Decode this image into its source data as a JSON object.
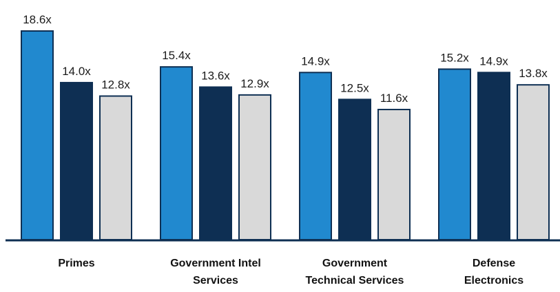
{
  "chart_data": {
    "type": "bar",
    "title": "",
    "xlabel": "",
    "ylabel": "",
    "categories": [
      [
        "Primes"
      ],
      [
        "Government Intel",
        "Services"
      ],
      [
        "Government",
        "Technical Services"
      ],
      [
        "Defense",
        "Electronics"
      ]
    ],
    "series": [
      {
        "values": [
          18.6,
          15.4,
          14.9,
          15.2
        ],
        "labels": [
          "18.6x",
          "15.4x",
          "14.9x",
          "15.2x"
        ],
        "color": "#2189cf"
      },
      {
        "values": [
          14.0,
          13.6,
          12.5,
          14.9
        ],
        "labels": [
          "14.0x",
          "13.6x",
          "12.5x",
          "14.9x"
        ],
        "color": "#0e2f53"
      },
      {
        "values": [
          12.8,
          12.9,
          11.6,
          13.8
        ],
        "labels": [
          "12.8x",
          "12.9x",
          "11.6x",
          "13.8x"
        ],
        "color": "#d9d9d9"
      }
    ],
    "ylim": [
      0,
      19.5
    ],
    "grid": false,
    "legend": "none",
    "value_label_suffix": "x"
  }
}
